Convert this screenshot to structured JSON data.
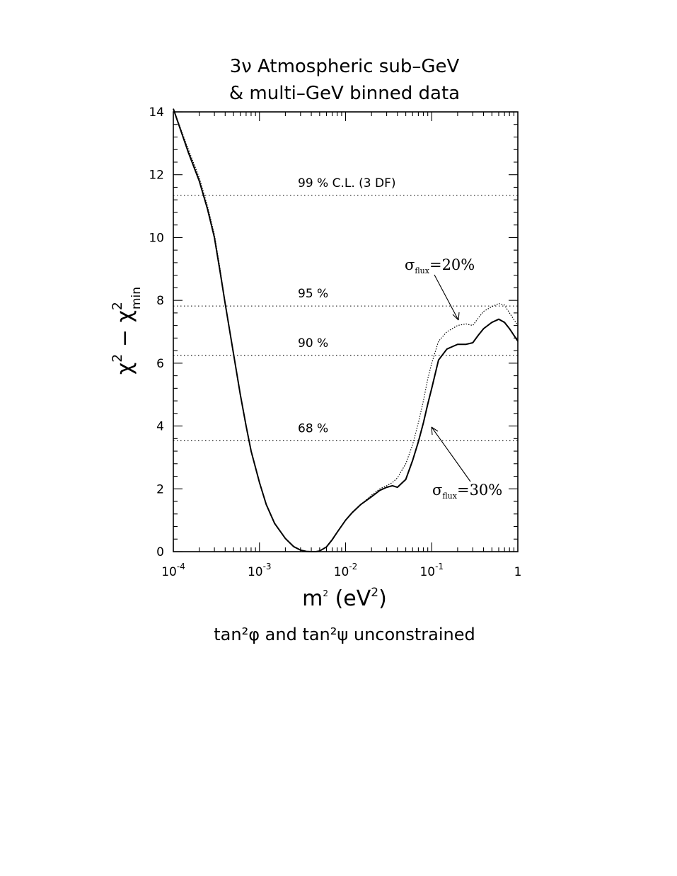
{
  "chart_data": {
    "type": "line",
    "title": [
      "3ν Atmospheric sub–GeV",
      "& multi–GeV binned data"
    ],
    "xlabel": "m² (eV²)",
    "ylabel": "χ² − χ²min",
    "xscale": "log",
    "xlim": [
      0.0001,
      1
    ],
    "ylim": [
      0,
      14
    ],
    "x_ticks": [
      {
        "base": "10",
        "exp": "-4"
      },
      {
        "base": "10",
        "exp": "-3"
      },
      {
        "base": "10",
        "exp": "-2"
      },
      {
        "base": "10",
        "exp": "-1"
      },
      {
        "base": "1",
        "exp": ""
      }
    ],
    "y_ticks": [
      "0",
      "2",
      "4",
      "6",
      "8",
      "10",
      "12",
      "14"
    ],
    "grid": false,
    "confidence_levels": [
      {
        "label": "99 % C.L. (3 DF)",
        "value": 11.34
      },
      {
        "label": "95 %",
        "value": 7.82
      },
      {
        "label": "90 %",
        "value": 6.25
      },
      {
        "label": "68 %",
        "value": 3.53
      }
    ],
    "series": [
      {
        "name": "σflux=30%",
        "style": "solid",
        "x": [
          0.0001,
          0.00015,
          0.0002,
          0.00025,
          0.0003,
          0.00035,
          0.0004,
          0.0005,
          0.0006,
          0.0007,
          0.0008,
          0.001,
          0.0012,
          0.0015,
          0.002,
          0.0025,
          0.003,
          0.0035,
          0.004,
          0.0045,
          0.005,
          0.006,
          0.007,
          0.008,
          0.01,
          0.012,
          0.015,
          0.02,
          0.025,
          0.03,
          0.035,
          0.04,
          0.05,
          0.06,
          0.07,
          0.08,
          0.09,
          0.1,
          0.12,
          0.15,
          0.2,
          0.25,
          0.3,
          0.35,
          0.4,
          0.5,
          0.6,
          0.7,
          0.8,
          1.0
        ],
        "y": [
          14.1,
          12.7,
          11.8,
          10.9,
          10.0,
          8.9,
          7.9,
          6.3,
          5.0,
          4.0,
          3.2,
          2.2,
          1.5,
          0.9,
          0.42,
          0.16,
          0.05,
          0.01,
          0.0,
          0.0,
          0.02,
          0.15,
          0.38,
          0.62,
          1.0,
          1.25,
          1.5,
          1.75,
          1.95,
          2.05,
          2.1,
          2.05,
          2.3,
          2.9,
          3.5,
          4.1,
          4.7,
          5.2,
          6.1,
          6.45,
          6.6,
          6.6,
          6.65,
          6.9,
          7.1,
          7.3,
          7.4,
          7.3,
          7.1,
          6.7
        ]
      },
      {
        "name": "σflux=20%",
        "style": "dotted",
        "x": [
          0.0001,
          0.00015,
          0.0002,
          0.00025,
          0.0003,
          0.00035,
          0.0004,
          0.0005,
          0.0006,
          0.0007,
          0.0008,
          0.001,
          0.0012,
          0.0015,
          0.002,
          0.0025,
          0.003,
          0.0035,
          0.004,
          0.0045,
          0.005,
          0.006,
          0.007,
          0.008,
          0.01,
          0.012,
          0.015,
          0.02,
          0.025,
          0.03,
          0.035,
          0.04,
          0.05,
          0.06,
          0.07,
          0.08,
          0.09,
          0.1,
          0.12,
          0.15,
          0.2,
          0.25,
          0.3,
          0.35,
          0.4,
          0.5,
          0.6,
          0.7,
          0.8,
          1.0
        ],
        "y": [
          14.1,
          12.8,
          11.9,
          11.0,
          10.1,
          9.0,
          7.9,
          6.3,
          5.0,
          4.0,
          3.2,
          2.2,
          1.5,
          0.9,
          0.42,
          0.16,
          0.05,
          0.01,
          0.0,
          0.0,
          0.02,
          0.15,
          0.38,
          0.62,
          1.0,
          1.25,
          1.5,
          1.8,
          2.0,
          2.1,
          2.2,
          2.35,
          2.8,
          3.4,
          4.1,
          4.8,
          5.5,
          6.0,
          6.7,
          7.0,
          7.2,
          7.25,
          7.2,
          7.45,
          7.65,
          7.8,
          7.9,
          7.85,
          7.6,
          7.2
        ]
      }
    ],
    "annotations": [
      {
        "symbol": "σ",
        "sub": "flux",
        "value": "=20%"
      },
      {
        "symbol": "σ",
        "sub": "flux",
        "value": "=30%"
      }
    ],
    "note": "tan²φ  and  tan²ψ  unconstrained"
  }
}
